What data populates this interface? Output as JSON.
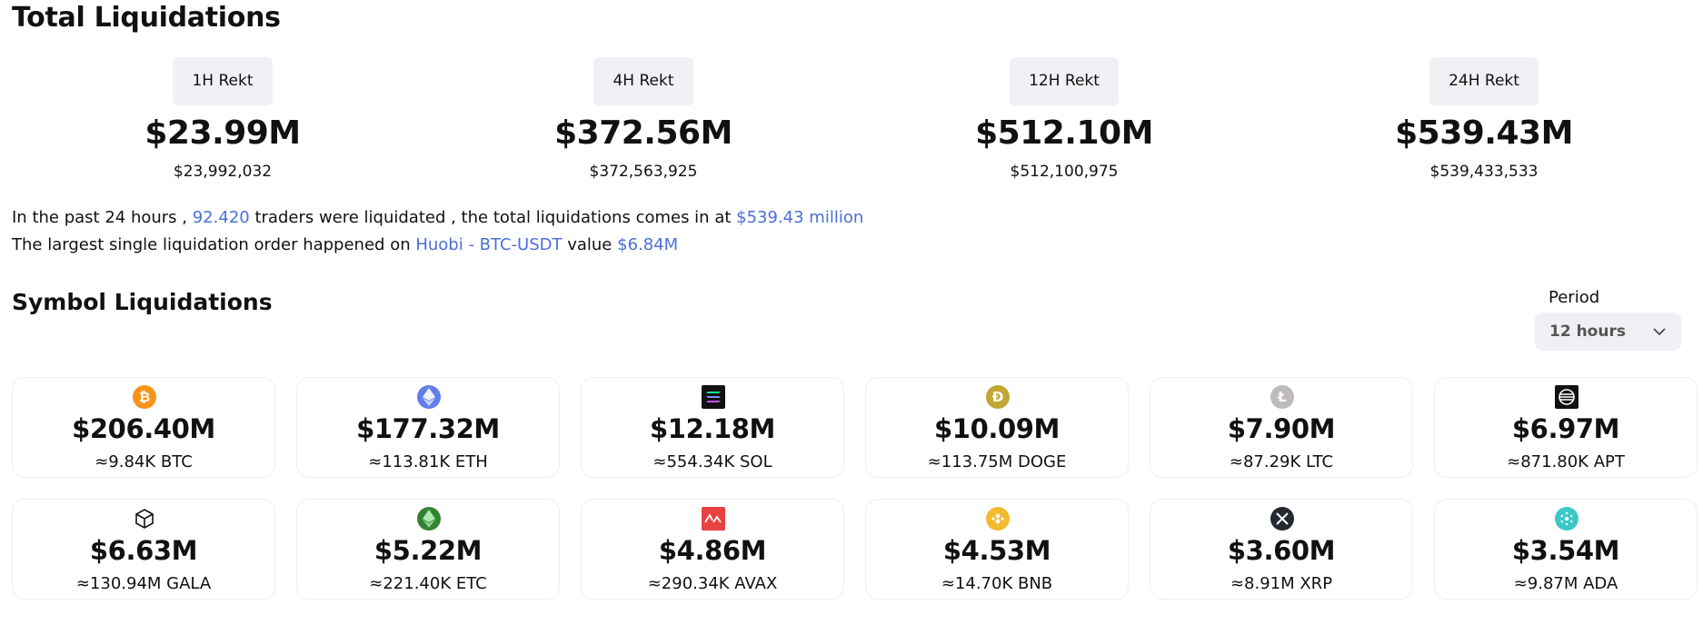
{
  "header": {
    "title": "Total Liquidations"
  },
  "rekt": [
    {
      "label": "1H Rekt",
      "amount": "$23.99M",
      "exact": "$23,992,032"
    },
    {
      "label": "4H Rekt",
      "amount": "$372.56M",
      "exact": "$372,563,925"
    },
    {
      "label": "12H Rekt",
      "amount": "$512.10M",
      "exact": "$512,100,975"
    },
    {
      "label": "24H Rekt",
      "amount": "$539.43M",
      "exact": "$539,433,533"
    }
  ],
  "summary": {
    "line1_prefix": "In the past 24 hours ,",
    "traders": "92.420",
    "line1_mid": "traders were liquidated , the total liquidations comes in at",
    "total": "$539.43 million",
    "line2_prefix": "The largest single liquidation order happened on",
    "order": "Huobi - BTC-USDT",
    "line2_mid": "value",
    "value": "$6.84M"
  },
  "symbols": {
    "title": "Symbol Liquidations",
    "period_label": "Period",
    "period_value": "12 hours",
    "cards": [
      {
        "amount": "$206.40M",
        "sub": "≈9.84K BTC",
        "icon": "bitcoin-icon",
        "color": "#f7931a"
      },
      {
        "amount": "$177.32M",
        "sub": "≈113.81K ETH",
        "icon": "ethereum-icon",
        "color": "#627eea"
      },
      {
        "amount": "$12.18M",
        "sub": "≈554.34K SOL",
        "icon": "solana-icon",
        "color": "#111111"
      },
      {
        "amount": "$10.09M",
        "sub": "≈113.75M DOGE",
        "icon": "dogecoin-icon",
        "color": "#c2a633"
      },
      {
        "amount": "$7.90M",
        "sub": "≈87.29K LTC",
        "icon": "litecoin-icon",
        "color": "#bfbbbb"
      },
      {
        "amount": "$6.97M",
        "sub": "≈871.80K APT",
        "icon": "aptos-icon",
        "color": "#111111"
      },
      {
        "amount": "$6.63M",
        "sub": "≈130.94M GALA",
        "icon": "gala-icon",
        "color": "#ffffff"
      },
      {
        "amount": "$5.22M",
        "sub": "≈221.40K ETC",
        "icon": "ethereum-classic-icon",
        "color": "#328332"
      },
      {
        "amount": "$4.86M",
        "sub": "≈290.34K AVAX",
        "icon": "avalanche-icon",
        "color": "#e84142"
      },
      {
        "amount": "$4.53M",
        "sub": "≈14.70K BNB",
        "icon": "bnb-icon",
        "color": "#f3ba2f"
      },
      {
        "amount": "$3.60M",
        "sub": "≈8.91M XRP",
        "icon": "xrp-icon",
        "color": "#23292f"
      },
      {
        "amount": "$3.54M",
        "sub": "≈9.87M ADA",
        "icon": "cardano-icon",
        "color": "#3cc8c8"
      }
    ]
  }
}
